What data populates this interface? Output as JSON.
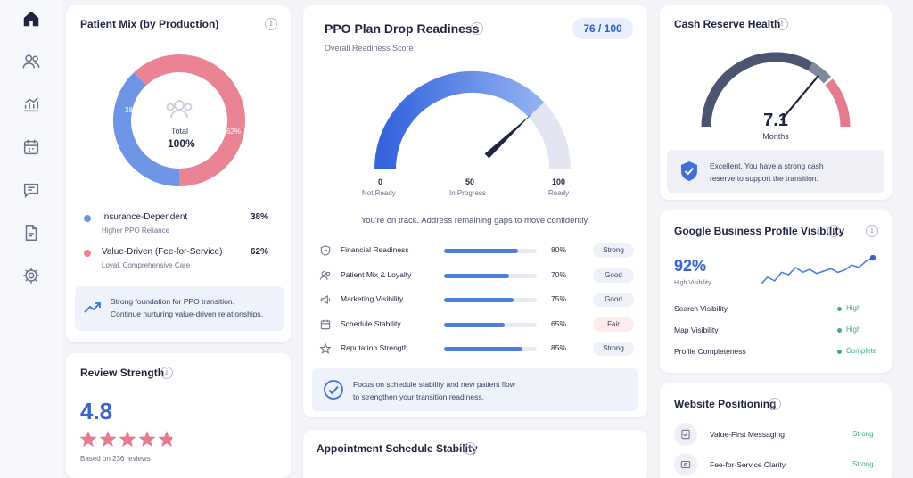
{
  "sidebar": {
    "items": [
      {
        "name": "home-icon"
      },
      {
        "name": "users-icon"
      },
      {
        "name": "analytics-icon"
      },
      {
        "name": "calendar-icon"
      },
      {
        "name": "messages-icon"
      },
      {
        "name": "document-icon"
      },
      {
        "name": "settings-icon"
      }
    ]
  },
  "patient_mix": {
    "title": "Patient Mix (by Production)",
    "center_label": "Total",
    "center_value": "100%",
    "slice_labels": [
      "38%",
      "62%"
    ],
    "slice_colors": [
      "#6e94e6",
      "#ea8494"
    ],
    "legend": [
      {
        "label": "Insurance-Dependent",
        "sub": "Higher PPO Reliance",
        "value": "38%"
      },
      {
        "label": "Value-Driven (Fee-for-Service)",
        "sub": "Loyal, Comprehensive Care",
        "value": "62%"
      }
    ],
    "note_line1": "Strong foundation for PPO transition.",
    "note_line2": "Continue nurturing value-driven relationships."
  },
  "review_strength": {
    "title": "Review Strength",
    "score": "4.8",
    "rating": 4.8,
    "max": 5,
    "based_on": "Based on 236 reviews"
  },
  "ppo": {
    "title": "PPO Plan Drop Readiness",
    "subtitle": "Overall Readiness Score",
    "score_badge": "76 / 100",
    "gauge_value": 76,
    "gauge_labels": [
      {
        "num": "0",
        "text": "Not Ready"
      },
      {
        "num": "50",
        "text": "In Progress"
      },
      {
        "num": "100",
        "text": "Ready"
      }
    ],
    "message": "You're on track. Address remaining gaps to move confidently.",
    "rows": [
      {
        "icon": "shield-icon",
        "label": "Financial Readiness",
        "value": "80%",
        "fraction": 0.8,
        "badge": "Strong"
      },
      {
        "icon": "users-icon",
        "label": "Patient Mix & Loyalty",
        "value": "70%",
        "fraction": 0.7,
        "badge": "Good"
      },
      {
        "icon": "megaphone-icon",
        "label": "Marketing Visibility",
        "value": "75%",
        "fraction": 0.75,
        "badge": "Good"
      },
      {
        "icon": "calendar-icon",
        "label": "Schedule Stability",
        "value": "65%",
        "fraction": 0.65,
        "badge": "Fair"
      },
      {
        "icon": "star-icon",
        "label": "Reputation Strength",
        "value": "85%",
        "fraction": 0.85,
        "badge": "Strong"
      }
    ],
    "focus_line1": "Focus on schedule stability and new patient flow",
    "focus_line2": "to strengthen your transition readiness."
  },
  "appointment": {
    "title": "Appointment Schedule Stability"
  },
  "cash": {
    "title": "Cash Reserve Health",
    "value": "7.1",
    "unit": "Months",
    "message_line1": "Excellent. You have a strong cash",
    "message_line2": "reserve to support the transition."
  },
  "gbp": {
    "title": "Google Business Profile Visibility",
    "value": "92%",
    "value_label": "High Visibility",
    "trend": [
      30,
      42,
      36,
      50,
      46,
      58,
      50,
      55,
      48,
      52,
      56,
      50,
      54,
      62,
      58,
      68,
      74
    ],
    "rows": [
      {
        "label": "Search Visibility",
        "status": "High"
      },
      {
        "label": "Map Visibility",
        "status": "High"
      },
      {
        "label": "Profile Completeness",
        "status": "Complete"
      }
    ]
  },
  "website": {
    "title": "Website Positioning",
    "rows": [
      {
        "label": "Value-First Messaging",
        "status": "Strong"
      },
      {
        "label": "Fee-for-Service Clarity",
        "status": "Strong"
      }
    ]
  }
}
